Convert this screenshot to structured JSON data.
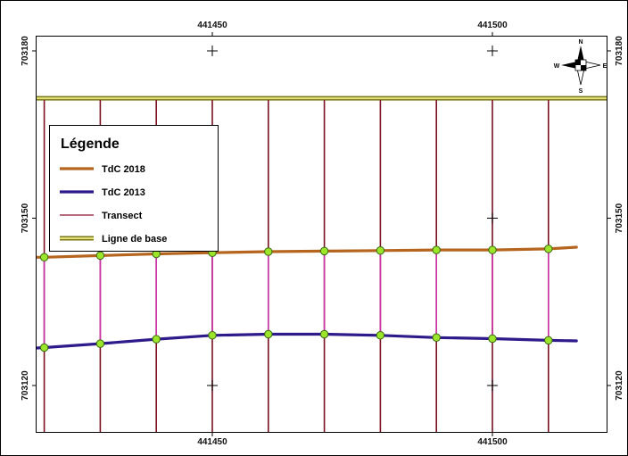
{
  "map": {
    "x_ticks": [
      441450,
      441500
    ],
    "y_ticks": [
      703180,
      703150,
      703120
    ],
    "extent": {
      "x_min": 441415,
      "x_max": 441515,
      "y_min": 703112,
      "y_max": 703184
    },
    "grid_crosses": [
      {
        "x": 441450,
        "y": 703180
      },
      {
        "x": 441500,
        "y": 703180
      },
      {
        "x": 441500,
        "y": 703150
      },
      {
        "x": 441450,
        "y": 703120
      },
      {
        "x": 441500,
        "y": 703120
      }
    ],
    "baseline_y": 703171.5,
    "transect_x": [
      441420,
      441430,
      441440,
      441450,
      441460,
      441470,
      441480,
      441490,
      441500,
      441510
    ],
    "coast_2018": {
      "color": "#b5651d",
      "points": [
        [
          441415,
          703143.0
        ],
        [
          441420,
          703143.0
        ],
        [
          441430,
          703143.3
        ],
        [
          441440,
          703143.6
        ],
        [
          441450,
          703143.8
        ],
        [
          441460,
          703144.0
        ],
        [
          441470,
          703144.1
        ],
        [
          441480,
          703144.2
        ],
        [
          441490,
          703144.3
        ],
        [
          441500,
          703144.3
        ],
        [
          441510,
          703144.5
        ],
        [
          441515,
          703144.8
        ]
      ]
    },
    "coast_2013": {
      "color": "#2e1a8a",
      "points": [
        [
          441415,
          703126.5
        ],
        [
          441420,
          703126.8
        ],
        [
          441430,
          703127.5
        ],
        [
          441440,
          703128.3
        ],
        [
          441450,
          703129.0
        ],
        [
          441460,
          703129.2
        ],
        [
          441470,
          703129.2
        ],
        [
          441480,
          703129.0
        ],
        [
          441490,
          703128.6
        ],
        [
          441500,
          703128.4
        ],
        [
          441510,
          703128.1
        ],
        [
          441515,
          703128.0
        ]
      ]
    },
    "colors": {
      "transect": "#7a1020",
      "transect_segment": "#cc33aa",
      "baseline_outer": "#7a7a1a",
      "baseline_inner": "#e6e07a",
      "intersection_fill": "#9be62a",
      "intersection_stroke": "#3a6a10"
    }
  },
  "legend": {
    "title": "Légende",
    "items": [
      {
        "label": "TdC 2018",
        "kind": "line",
        "color": "#b5651d"
      },
      {
        "label": "TdC 2013",
        "kind": "line",
        "color": "#2e1a8a"
      },
      {
        "label": "Transect",
        "kind": "thin",
        "color": "#8a1030"
      },
      {
        "label": "Ligne de base",
        "kind": "double",
        "color": "#7a7a1a"
      }
    ]
  },
  "north_arrow": {
    "n": "N",
    "s": "S",
    "e": "E",
    "w": "W"
  }
}
